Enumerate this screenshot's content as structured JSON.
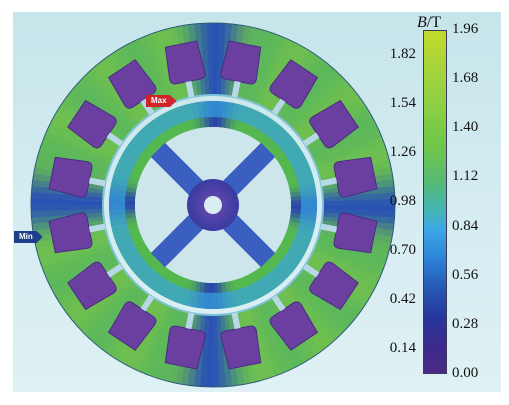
{
  "colorbar": {
    "title_symbol": "B",
    "title_unit": "/T",
    "ticks_right": [
      "1.96",
      "1.68",
      "1.40",
      "1.12",
      "0.84",
      "0.56",
      "0.28",
      "0.00"
    ],
    "ticks_left": [
      "1.82",
      "1.54",
      "1.26",
      "0.98",
      "0.70",
      "0.42",
      "0.14"
    ],
    "min_value": 0.0,
    "max_value": 1.96
  },
  "markers": {
    "max_label": "Max",
    "min_label": "Min"
  },
  "colors": {
    "stator_high": "#5cb85a",
    "stator_low": "#2a52b4",
    "slot": "#6a3fa0",
    "rotor": "#37a3df",
    "shaft": "#5a3f9b"
  },
  "stator_slots": 16,
  "rotor_poles": 4
}
